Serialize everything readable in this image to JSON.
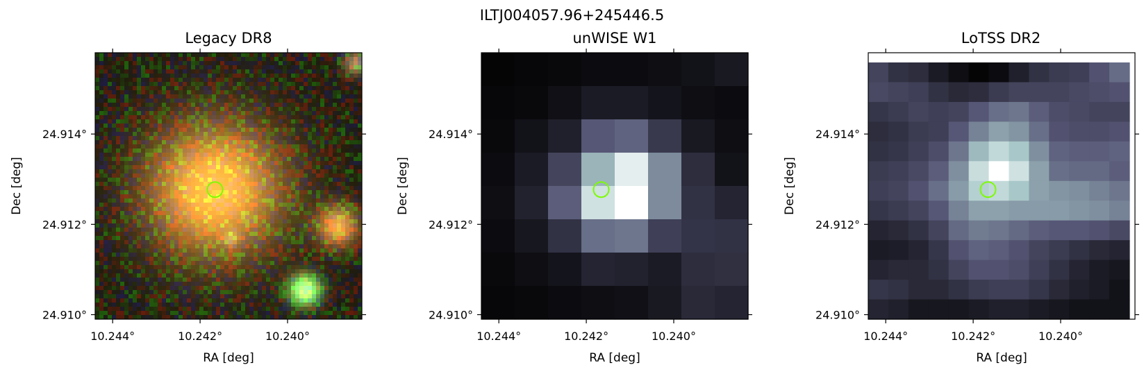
{
  "figure": {
    "suptitle": "ILTJ004057.96+245446.5"
  },
  "chart_data": [
    {
      "type": "heatmap",
      "title": "Legacy DR8",
      "xlabel": "RA [deg]",
      "ylabel": "Dec [deg]",
      "xticks": [
        "10.244°",
        "10.242°",
        "10.240°"
      ],
      "yticks": [
        "24.914°",
        "24.912°",
        "24.910°"
      ],
      "xlim": [
        10.2444,
        10.2383
      ],
      "ylim": [
        24.9099,
        24.9158
      ],
      "xtick_values": [
        10.244,
        10.242,
        10.24
      ],
      "ytick_values": [
        24.914,
        24.912,
        24.91
      ],
      "marker": {
        "ra": 10.24166,
        "dec": 24.91277,
        "color": "#7cfc00"
      },
      "colormap": "rgb-composite"
    },
    {
      "type": "heatmap",
      "title": "unWISE W1",
      "xlabel": "RA [deg]",
      "ylabel": "Dec [deg]",
      "xticks": [
        "10.244°",
        "10.242°",
        "10.240°"
      ],
      "yticks": [
        "24.914°",
        "24.912°",
        "24.910°"
      ],
      "xlim": [
        10.2444,
        10.2383
      ],
      "ylim": [
        24.9099,
        24.9158
      ],
      "xtick_values": [
        10.244,
        10.242,
        10.24
      ],
      "ytick_values": [
        24.914,
        24.912,
        24.91
      ],
      "marker": {
        "ra": 10.24166,
        "dec": 24.91277,
        "color": "#7cfc00"
      },
      "colormap": "bone",
      "grid": [
        [
          0.02,
          0.03,
          0.04,
          0.05,
          0.05,
          0.06,
          0.08,
          0.11
        ],
        [
          0.03,
          0.04,
          0.07,
          0.12,
          0.12,
          0.09,
          0.06,
          0.05
        ],
        [
          0.04,
          0.08,
          0.14,
          0.38,
          0.42,
          0.25,
          0.11,
          0.06
        ],
        [
          0.05,
          0.12,
          0.3,
          0.68,
          0.92,
          0.55,
          0.2,
          0.08
        ],
        [
          0.06,
          0.15,
          0.4,
          0.86,
          1.0,
          0.55,
          0.22,
          0.16
        ],
        [
          0.05,
          0.1,
          0.22,
          0.46,
          0.48,
          0.28,
          0.23,
          0.22
        ],
        [
          0.04,
          0.06,
          0.09,
          0.16,
          0.15,
          0.12,
          0.2,
          0.21
        ],
        [
          0.03,
          0.04,
          0.05,
          0.06,
          0.07,
          0.11,
          0.18,
          0.16
        ]
      ]
    },
    {
      "type": "heatmap",
      "title": "LoTSS DR2",
      "xlabel": "RA [deg]",
      "ylabel": "Dec [deg]",
      "xticks": [
        "10.244°",
        "10.242°",
        "10.240°"
      ],
      "yticks": [
        "24.914°",
        "24.912°",
        "24.910°"
      ],
      "xlim": [
        10.2444,
        10.2383
      ],
      "ylim": [
        24.9099,
        24.9158
      ],
      "xtick_values": [
        10.244,
        10.242,
        10.24
      ],
      "ytick_values": [
        24.914,
        24.912,
        24.91
      ],
      "marker": {
        "ra": 10.24166,
        "dec": 24.91277,
        "color": "#7cfc00"
      },
      "colormap": "bone",
      "grid": [
        [
          0.3,
          0.22,
          0.2,
          0.12,
          0.06,
          0.02,
          0.05,
          0.14,
          0.22,
          0.26,
          0.28,
          0.36,
          0.45
        ],
        [
          0.32,
          0.3,
          0.28,
          0.22,
          0.18,
          0.2,
          0.26,
          0.3,
          0.3,
          0.3,
          0.32,
          0.34,
          0.36
        ],
        [
          0.24,
          0.26,
          0.3,
          0.28,
          0.3,
          0.38,
          0.46,
          0.48,
          0.4,
          0.34,
          0.32,
          0.3,
          0.3
        ],
        [
          0.2,
          0.22,
          0.26,
          0.28,
          0.38,
          0.52,
          0.62,
          0.58,
          0.46,
          0.36,
          0.34,
          0.34,
          0.36
        ],
        [
          0.22,
          0.24,
          0.28,
          0.34,
          0.48,
          0.7,
          0.82,
          0.74,
          0.56,
          0.42,
          0.4,
          0.4,
          0.42
        ],
        [
          0.26,
          0.28,
          0.32,
          0.4,
          0.56,
          0.84,
          1.0,
          0.86,
          0.62,
          0.46,
          0.44,
          0.44,
          0.4
        ],
        [
          0.28,
          0.3,
          0.36,
          0.46,
          0.6,
          0.78,
          0.82,
          0.74,
          0.62,
          0.58,
          0.56,
          0.52,
          0.48
        ],
        [
          0.24,
          0.26,
          0.3,
          0.38,
          0.52,
          0.62,
          0.62,
          0.6,
          0.6,
          0.6,
          0.58,
          0.56,
          0.52
        ],
        [
          0.16,
          0.18,
          0.22,
          0.3,
          0.44,
          0.5,
          0.48,
          0.44,
          0.4,
          0.38,
          0.38,
          0.36,
          0.32
        ],
        [
          0.12,
          0.13,
          0.16,
          0.24,
          0.36,
          0.42,
          0.4,
          0.36,
          0.3,
          0.26,
          0.22,
          0.18,
          0.16
        ],
        [
          0.16,
          0.18,
          0.18,
          0.22,
          0.3,
          0.36,
          0.36,
          0.34,
          0.28,
          0.22,
          0.16,
          0.12,
          0.1
        ],
        [
          0.24,
          0.22,
          0.18,
          0.18,
          0.22,
          0.26,
          0.28,
          0.28,
          0.24,
          0.18,
          0.14,
          0.12,
          0.08
        ],
        [
          0.16,
          0.14,
          0.1,
          0.1,
          0.1,
          0.12,
          0.14,
          0.14,
          0.12,
          0.1,
          0.08,
          0.08,
          0.08
        ]
      ]
    }
  ]
}
